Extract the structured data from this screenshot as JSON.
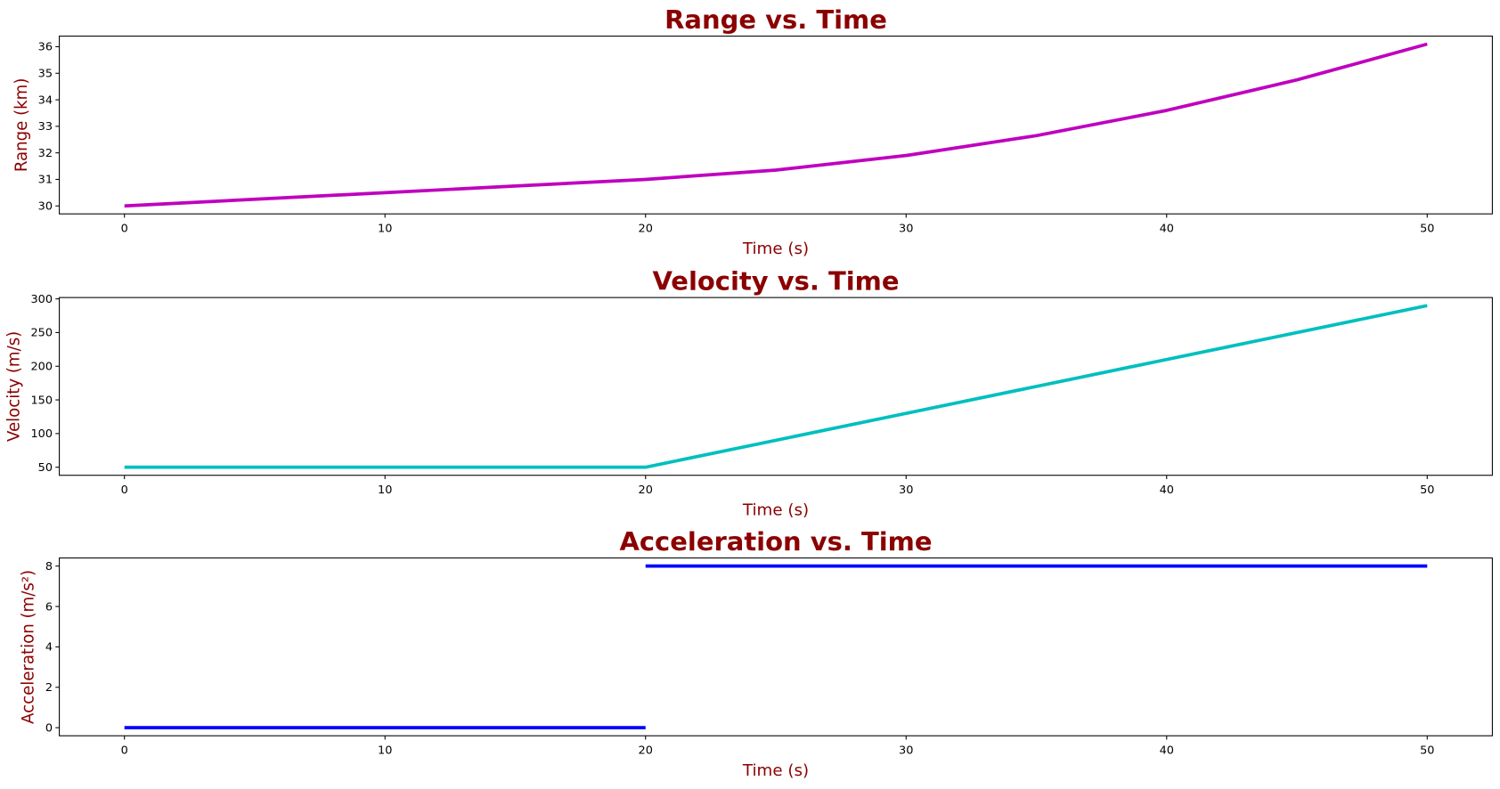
{
  "chart_data": [
    {
      "type": "line",
      "title": "Range vs. Time",
      "xlabel": "Time (s)",
      "ylabel": "Range (km)",
      "color": "#bf00bf",
      "xlim": [
        -2.5,
        52.5
      ],
      "ylim": [
        29.7,
        36.4
      ],
      "xticks": [
        0,
        10,
        20,
        30,
        40,
        50
      ],
      "yticks": [
        30,
        31,
        32,
        33,
        34,
        35,
        36
      ],
      "grid": false,
      "segments": [
        {
          "x": [
            0,
            5,
            10,
            15,
            20,
            25,
            30,
            35,
            40,
            45,
            50
          ],
          "y": [
            30,
            30.25,
            30.5,
            30.75,
            31,
            31.35,
            31.9,
            32.65,
            33.6,
            34.75,
            36.1
          ]
        }
      ]
    },
    {
      "type": "line",
      "title": "Velocity vs. Time",
      "xlabel": "Time (s)",
      "ylabel": "Velocity (m/s)",
      "color": "#00bfbf",
      "xlim": [
        -2.5,
        52.5
      ],
      "ylim": [
        38,
        302
      ],
      "xticks": [
        0,
        10,
        20,
        30,
        40,
        50
      ],
      "yticks": [
        50,
        100,
        150,
        200,
        250,
        300
      ],
      "grid": false,
      "segments": [
        {
          "x": [
            0,
            5,
            10,
            15,
            20,
            25,
            30,
            35,
            40,
            45,
            50
          ],
          "y": [
            50,
            50,
            50,
            50,
            50,
            90,
            130,
            170,
            210,
            250,
            290
          ]
        }
      ]
    },
    {
      "type": "line",
      "title": "Acceleration vs. Time",
      "xlabel": "Time (s)",
      "ylabel": "Acceleration (m/s²)",
      "color": "#0000ff",
      "xlim": [
        -2.5,
        52.5
      ],
      "ylim": [
        -0.4,
        8.4
      ],
      "xticks": [
        0,
        10,
        20,
        30,
        40,
        50
      ],
      "yticks": [
        0,
        2,
        4,
        6,
        8
      ],
      "grid": false,
      "segments": [
        {
          "x": [
            0,
            20
          ],
          "y": [
            0,
            0
          ]
        },
        {
          "x": [
            20,
            50
          ],
          "y": [
            8,
            8
          ]
        }
      ]
    }
  ]
}
